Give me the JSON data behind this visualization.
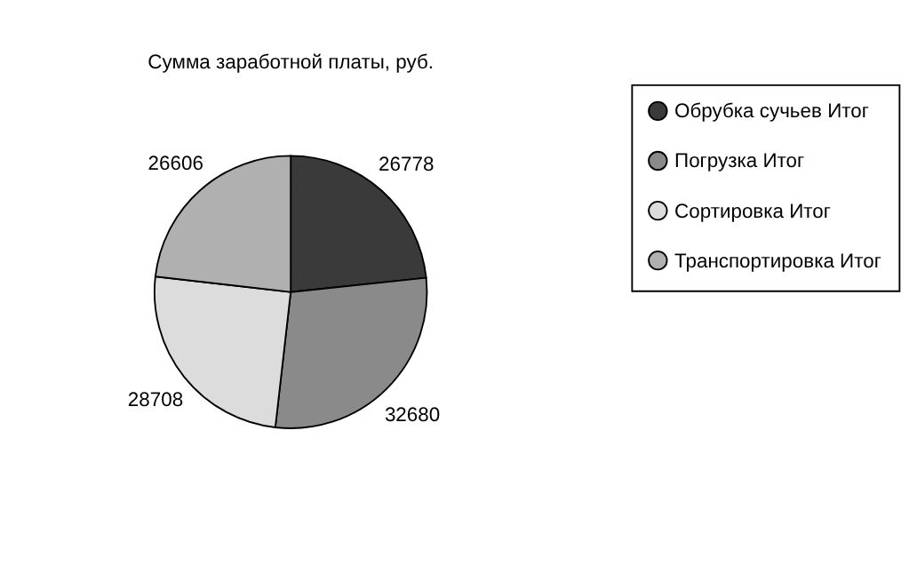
{
  "chart_data": {
    "type": "pie",
    "title": "Сумма заработной платы, руб.",
    "categories": [
      "Обрубка сучьев Итог",
      "Погрузка Итог",
      "Сортировка Итог",
      "Транспортировка Итог"
    ],
    "values": [
      26778,
      32680,
      28708,
      26606
    ],
    "colors": [
      "#3a3a3a",
      "#8a8a8a",
      "#dcdcdc",
      "#b0b0b0"
    ],
    "data_labels": true,
    "legend": "right"
  }
}
